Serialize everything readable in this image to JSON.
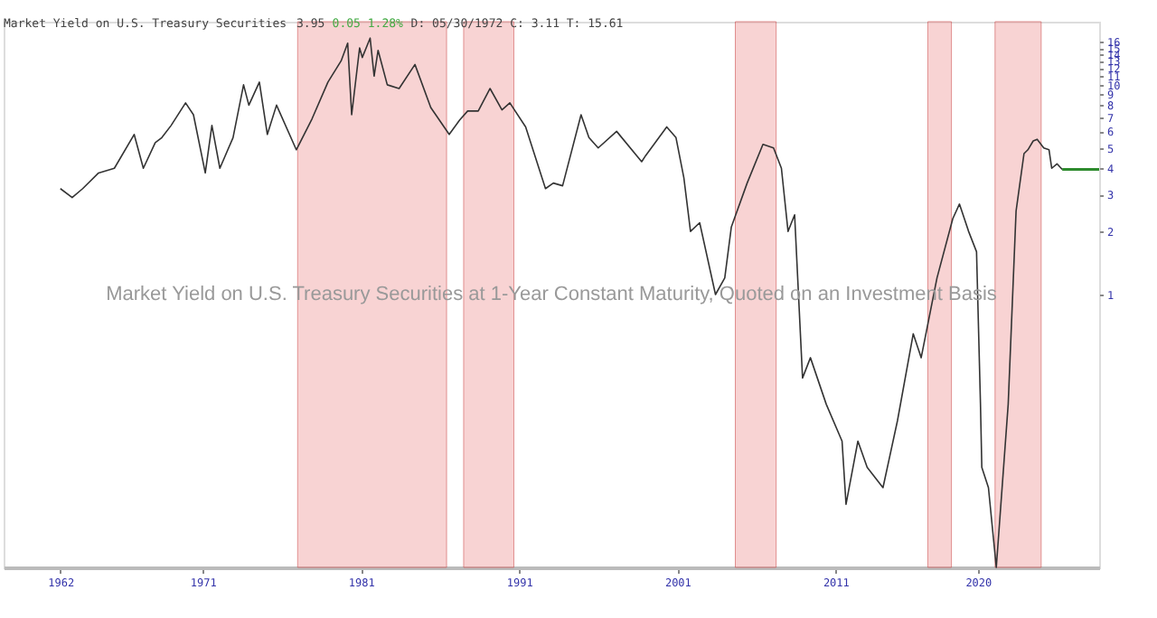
{
  "chart_data": {
    "type": "line",
    "title": "Market Yield on U.S. Treasury Securities",
    "annotations": [
      "3.95",
      "0.05 1.28%",
      "D: 05/30/1972 C: 3.11 T: 15.61",
      "Market Yield on U.S. Treasury Securities at 1-Year Constant Maturity, Quoted on an Investment Basis"
    ],
    "series": [
      {
        "color": "#333333",
        "x": [
          "1962-01",
          "1962-10",
          "1963-06",
          "1964-06",
          "1965-06",
          "1966-09",
          "1967-04",
          "1968-01",
          "1968-06",
          "1969-01",
          "1969-12",
          "1970-06",
          "1971-03",
          "1971-08",
          "1972-02",
          "1972-12",
          "1973-08",
          "1973-12",
          "1974-08",
          "1975-02",
          "1975-09",
          "1976-12",
          "1977-12",
          "1978-12",
          "1979-10",
          "1980-03",
          "1980-06",
          "1980-12",
          "1981-02",
          "1981-08",
          "1981-11",
          "1982-02",
          "1982-09",
          "1983-06",
          "1984-06",
          "1985-06",
          "1986-08",
          "1987-04",
          "1987-10",
          "1988-06",
          "1989-03",
          "1989-12",
          "1990-06",
          "1991-06",
          "1992-09",
          "1993-03",
          "1993-10",
          "1994-12",
          "1995-06",
          "1996-01",
          "1997-03",
          "1998-10",
          "1999-01",
          "2000-05",
          "2000-12",
          "2001-06",
          "2001-11",
          "2002-06",
          "2003-06",
          "2004-01",
          "2004-06",
          "2005-06",
          "2006-06",
          "2007-02",
          "2007-08",
          "2008-01",
          "2008-06",
          "2008-12",
          "2009-06",
          "2010-06",
          "2011-06",
          "2011-09",
          "2012-06",
          "2013-01",
          "2014-01",
          "2014-12",
          "2015-12",
          "2016-06",
          "2017-06",
          "2018-06",
          "2018-11",
          "2019-06",
          "2019-12",
          "2020-03",
          "2020-04",
          "2020-09",
          "2021-03",
          "2021-12",
          "2022-06",
          "2022-12",
          "2023-03",
          "2023-07",
          "2023-10",
          "2024-03",
          "2024-07",
          "2024-09",
          "2025-01",
          "2025-05"
        ],
        "values": [
          3.2,
          2.9,
          3.2,
          3.8,
          4.0,
          5.8,
          4.0,
          5.3,
          5.6,
          6.4,
          8.2,
          7.2,
          3.8,
          6.4,
          4.0,
          5.6,
          10.0,
          8.0,
          10.3,
          5.8,
          8.0,
          4.9,
          6.9,
          10.3,
          13.0,
          15.8,
          7.2,
          15.0,
          13.5,
          16.7,
          11.0,
          14.6,
          10.0,
          9.6,
          12.5,
          7.8,
          5.8,
          6.8,
          7.5,
          7.5,
          9.6,
          7.6,
          8.2,
          6.3,
          3.2,
          3.4,
          3.3,
          7.2,
          5.6,
          5.0,
          6.0,
          4.3,
          4.6,
          6.3,
          5.6,
          3.6,
          2.0,
          2.2,
          1.0,
          1.2,
          2.1,
          3.4,
          5.2,
          5.0,
          4.0,
          2.0,
          2.4,
          0.4,
          0.5,
          0.3,
          0.2,
          0.1,
          0.2,
          0.15,
          0.12,
          0.25,
          0.65,
          0.5,
          1.2,
          2.3,
          2.7,
          2.0,
          1.6,
          0.3,
          0.15,
          0.12,
          0.05,
          0.3,
          2.5,
          4.7,
          4.9,
          5.4,
          5.5,
          5.0,
          4.9,
          4.0,
          4.2,
          3.95
        ]
      },
      {
        "type": "line",
        "color": "#2e8b2e",
        "x": [
          "2025-05",
          "2027-09"
        ],
        "values": [
          3.95,
          3.95
        ]
      }
    ],
    "log": true,
    "xlim": [
      "1958-06",
      "2027-09"
    ],
    "xticks": [
      {
        "value": "1962",
        "label": "1962"
      },
      {
        "value": "1971",
        "label": "1971"
      },
      {
        "value": "1981",
        "label": "1981"
      },
      {
        "value": "1991",
        "label": "1991"
      },
      {
        "value": "2001",
        "label": "2001"
      },
      {
        "value": "2011",
        "label": "2011"
      },
      {
        "value": "2020",
        "label": "2020"
      }
    ],
    "ylim": [
      0.05,
      20
    ],
    "yticks": [
      1,
      2,
      3,
      4,
      5,
      6,
      7,
      8,
      9,
      10,
      11,
      12,
      13,
      14,
      15,
      16
    ],
    "grid": false,
    "bands": [
      {
        "axis": "x",
        "from": "1977-01",
        "to": "1986-06",
        "color": "#f4b6b6"
      },
      {
        "axis": "x",
        "from": "1987-07",
        "to": "1990-09",
        "color": "#f4b6b6"
      },
      {
        "axis": "x",
        "from": "2004-09",
        "to": "2007-04",
        "color": "#f4b6b6"
      },
      {
        "axis": "x",
        "from": "2016-11",
        "to": "2018-05",
        "color": "#f4b6b6"
      },
      {
        "axis": "x",
        "from": "2021-02",
        "to": "2024-01",
        "color": "#f4b6b6"
      }
    ]
  }
}
